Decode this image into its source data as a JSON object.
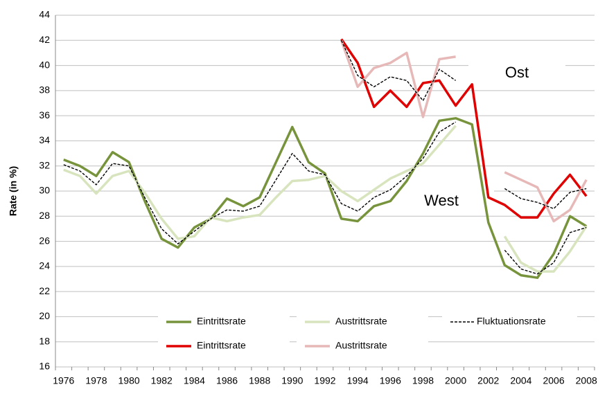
{
  "chart_data": {
    "type": "line",
    "y_label": "Rate (in %)",
    "annotations": [
      "Ost",
      "West"
    ],
    "categories": [
      "1976",
      null,
      "1978",
      null,
      "1980",
      null,
      "1982",
      null,
      "1984",
      null,
      "1986",
      null,
      "1988",
      null,
      "1990",
      null,
      "1992",
      null,
      "1994",
      null,
      "1996",
      null,
      "1998",
      null,
      "2000",
      null,
      "2002",
      null,
      "2004",
      null,
      "2006",
      null,
      "2008"
    ],
    "ylim": [
      16,
      44
    ],
    "yticks": [
      16,
      18,
      20,
      22,
      24,
      26,
      28,
      30,
      32,
      34,
      36,
      38,
      40,
      42,
      44
    ],
    "grid": true,
    "series": [
      {
        "name": "Eintrittsrate",
        "color": "#77933c",
        "values": [
          32.5,
          32.0,
          31.2,
          33.1,
          32.3,
          29.1,
          26.2,
          25.5,
          27.1,
          27.8,
          29.4,
          28.8,
          29.5,
          32.3,
          35.1,
          32.3,
          31.4,
          27.8,
          27.6,
          28.8,
          29.2,
          30.8,
          33.0,
          35.6,
          35.8,
          35.3,
          27.5,
          24.1,
          23.3,
          23.1,
          25.0,
          28.0,
          27.2
        ]
      },
      {
        "name": "Austrittsrate",
        "color": "#d7e4bd",
        "values": [
          31.7,
          31.2,
          29.8,
          31.2,
          31.6,
          29.8,
          27.8,
          26.2,
          26.4,
          27.9,
          27.6,
          27.9,
          28.1,
          29.5,
          30.8,
          30.9,
          31.2,
          30.0,
          29.2,
          30.1,
          31.0,
          31.6,
          32.2,
          33.7,
          35.2,
          null,
          null,
          26.4,
          24.3,
          23.6,
          23.6,
          25.2,
          27.2
        ]
      },
      {
        "name": "Fluktuationsrate",
        "color": "#000000",
        "dashed": true,
        "values": [
          32.1,
          31.6,
          30.5,
          32.2,
          32.0,
          29.4,
          27.0,
          25.8,
          26.8,
          27.8,
          28.5,
          28.4,
          28.8,
          30.9,
          33.0,
          31.6,
          31.3,
          29.0,
          28.4,
          29.5,
          30.1,
          31.2,
          32.6,
          34.7,
          35.5,
          null,
          null,
          25.3,
          23.8,
          23.4,
          24.3,
          26.7,
          27.1
        ]
      },
      {
        "name": "Eintrittsrate",
        "color": "#e00000",
        "values": [
          null,
          null,
          null,
          null,
          null,
          null,
          null,
          null,
          null,
          null,
          null,
          null,
          null,
          null,
          null,
          null,
          null,
          42.1,
          40.2,
          36.7,
          38.0,
          36.7,
          38.6,
          38.8,
          36.8,
          38.5,
          29.5,
          28.9,
          27.9,
          27.9,
          29.8,
          31.3,
          29.6
        ]
      },
      {
        "name": "Austrittsrate",
        "color": "#e6b9b8",
        "values": [
          null,
          null,
          null,
          null,
          null,
          null,
          null,
          null,
          null,
          null,
          null,
          null,
          null,
          null,
          null,
          null,
          null,
          42.0,
          38.3,
          39.8,
          40.2,
          41.0,
          35.9,
          40.5,
          40.7,
          null,
          null,
          31.5,
          30.9,
          30.3,
          27.6,
          28.5,
          30.9
        ]
      },
      {
        "color": "#000000",
        "dashed": true,
        "values": [
          null,
          null,
          null,
          null,
          null,
          null,
          null,
          null,
          null,
          null,
          null,
          null,
          null,
          null,
          null,
          null,
          null,
          42.0,
          39.2,
          38.3,
          39.1,
          38.8,
          37.2,
          39.7,
          38.8,
          null,
          null,
          30.2,
          29.4,
          29.1,
          28.6,
          29.9,
          30.2
        ]
      }
    ]
  }
}
